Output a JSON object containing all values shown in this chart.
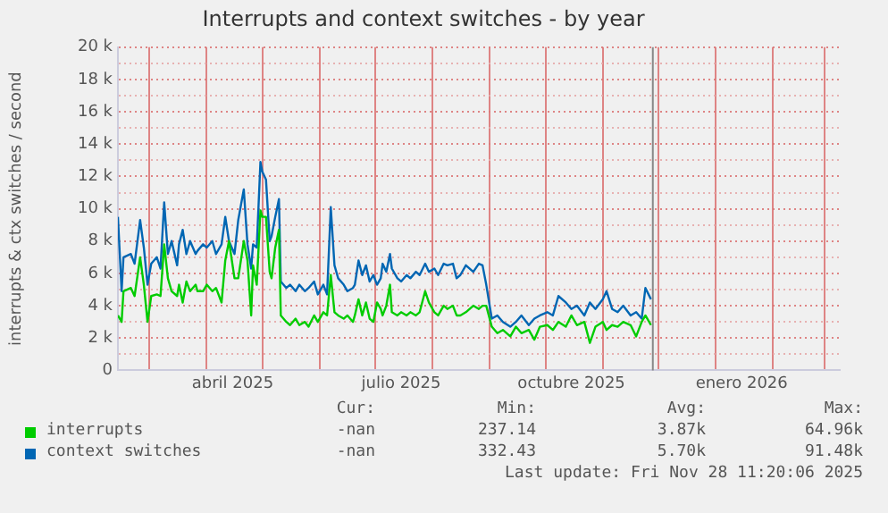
{
  "chart_data": {
    "type": "line",
    "title": "Interrupts and context switches - by year",
    "ylabel": "interrupts & ctx switches / second",
    "x": [
      "2025-02-12",
      "2025-02-14",
      "2025-02-15",
      "2025-02-19",
      "2025-02-21",
      "2025-02-24",
      "2025-02-26",
      "2025-02-28",
      "2025-03-02",
      "2025-03-05",
      "2025-03-07",
      "2025-03-09",
      "2025-03-11",
      "2025-03-13",
      "2025-03-16",
      "2025-03-17",
      "2025-03-19",
      "2025-03-21",
      "2025-03-23",
      "2025-03-26",
      "2025-03-27",
      "2025-03-30",
      "2025-04-01",
      "2025-04-04",
      "2025-04-06",
      "2025-04-09",
      "2025-04-11",
      "2025-04-13",
      "2025-04-16",
      "2025-04-18",
      "2025-04-21",
      "2025-04-23",
      "2025-04-25",
      "2025-04-26",
      "2025-04-28",
      "2025-04-30",
      "2025-05-01",
      "2025-05-03",
      "2025-05-05",
      "2025-05-06",
      "2025-05-08",
      "2025-05-10",
      "2025-05-11",
      "2025-05-14",
      "2025-05-16",
      "2025-05-19",
      "2025-05-21",
      "2025-05-24",
      "2025-05-26",
      "2025-05-29",
      "2025-05-31",
      "2025-06-03",
      "2025-06-05",
      "2025-06-07",
      "2025-06-09",
      "2025-06-11",
      "2025-06-14",
      "2025-06-16",
      "2025-06-19",
      "2025-06-20",
      "2025-06-22",
      "2025-06-24",
      "2025-06-26",
      "2025-06-28",
      "2025-06-30",
      "2025-07-02",
      "2025-07-04",
      "2025-07-05",
      "2025-07-07",
      "2025-07-09",
      "2025-07-10",
      "2025-07-13",
      "2025-07-15",
      "2025-07-18",
      "2025-07-20",
      "2025-07-23",
      "2025-07-25",
      "2025-07-28",
      "2025-07-30",
      "2025-08-02",
      "2025-08-04",
      "2025-08-07",
      "2025-08-09",
      "2025-08-12",
      "2025-08-14",
      "2025-08-16",
      "2025-08-19",
      "2025-08-23",
      "2025-08-26",
      "2025-08-28",
      "2025-08-30",
      "2025-09-02",
      "2025-09-05",
      "2025-09-08",
      "2025-09-12",
      "2025-09-15",
      "2025-09-18",
      "2025-09-22",
      "2025-09-25",
      "2025-09-28",
      "2025-10-02",
      "2025-10-05",
      "2025-10-08",
      "2025-10-12",
      "2025-10-15",
      "2025-10-18",
      "2025-10-22",
      "2025-10-25",
      "2025-10-28",
      "2025-11-01",
      "2025-11-03",
      "2025-11-06",
      "2025-11-09",
      "2025-11-12",
      "2025-11-16",
      "2025-11-19",
      "2025-11-22",
      "2025-11-24",
      "2025-11-27"
    ],
    "series": [
      {
        "name": "interrupts",
        "color": "#00cc00",
        "values": [
          3400,
          3000,
          4900,
          5100,
          4600,
          7000,
          5300,
          3000,
          4600,
          4700,
          4600,
          7800,
          5700,
          4900,
          4600,
          5300,
          4200,
          5500,
          4900,
          5300,
          4900,
          4900,
          5300,
          4900,
          5100,
          4200,
          6800,
          8000,
          5700,
          5700,
          8000,
          6800,
          3400,
          6500,
          5300,
          9900,
          9500,
          9500,
          6100,
          5700,
          7600,
          8700,
          3400,
          3000,
          2800,
          3200,
          2800,
          3000,
          2700,
          3400,
          3000,
          3600,
          3400,
          5900,
          3600,
          3400,
          3200,
          3400,
          3000,
          3400,
          4400,
          3400,
          4200,
          3200,
          3000,
          4200,
          3800,
          3400,
          4000,
          5300,
          3600,
          3400,
          3600,
          3400,
          3600,
          3400,
          3600,
          4900,
          4200,
          3600,
          3400,
          4000,
          3800,
          4000,
          3400,
          3400,
          3600,
          4000,
          3800,
          4000,
          4000,
          2700,
          2300,
          2500,
          2100,
          2700,
          2300,
          2500,
          1900,
          2700,
          2800,
          2500,
          3000,
          2700,
          3400,
          2800,
          3000,
          1700,
          2700,
          3000,
          2500,
          2800,
          2700,
          3000,
          2800,
          2100,
          3000,
          3400,
          2800
        ]
      },
      {
        "name": "context switches",
        "color": "#0066b3",
        "values": [
          9500,
          4900,
          7000,
          7200,
          6600,
          9300,
          7600,
          5300,
          6600,
          7000,
          6300,
          10400,
          7200,
          8000,
          6500,
          7800,
          8700,
          7200,
          8000,
          7200,
          7400,
          7800,
          7600,
          8000,
          7200,
          7800,
          9500,
          8000,
          7200,
          9300,
          11200,
          7800,
          6300,
          7800,
          7600,
          12900,
          12300,
          11800,
          8000,
          8300,
          9500,
          10600,
          5500,
          5100,
          5300,
          4900,
          5300,
          4900,
          5100,
          5500,
          4700,
          5300,
          4700,
          10100,
          6500,
          5700,
          5300,
          4900,
          5100,
          5300,
          6800,
          5900,
          6500,
          5500,
          5900,
          5300,
          5700,
          6600,
          6100,
          7200,
          6300,
          5700,
          5500,
          5900,
          5700,
          6100,
          5900,
          6600,
          6100,
          6300,
          5900,
          6600,
          6500,
          6600,
          5700,
          5900,
          6500,
          6100,
          6600,
          6500,
          5300,
          3200,
          3400,
          3000,
          2700,
          3000,
          3400,
          2800,
          3200,
          3400,
          3600,
          3400,
          4600,
          4200,
          3800,
          4000,
          3400,
          4200,
          3800,
          4400,
          4900,
          3800,
          3600,
          4000,
          3400,
          3600,
          3200,
          5100,
          4400
        ]
      }
    ],
    "xlim": [
      "2025-02-12",
      "2026-03-09"
    ],
    "xticks": [
      {
        "value": "2025-03-01",
        "label": null
      },
      {
        "value": "2025-04-01",
        "label": null
      },
      {
        "value": "2025-04-15",
        "label": "abril 2025"
      },
      {
        "value": "2025-05-01",
        "label": null
      },
      {
        "value": "2025-06-01",
        "label": null
      },
      {
        "value": "2025-07-01",
        "label": null
      },
      {
        "value": "2025-07-15",
        "label": "julio 2025"
      },
      {
        "value": "2025-08-01",
        "label": null
      },
      {
        "value": "2025-09-01",
        "label": null
      },
      {
        "value": "2025-10-01",
        "label": null
      },
      {
        "value": "2025-10-15",
        "label": "octubre 2025"
      },
      {
        "value": "2025-11-01",
        "label": null
      },
      {
        "value": "2025-12-01",
        "label": null
      },
      {
        "value": "2026-01-01",
        "label": null
      },
      {
        "value": "2026-01-15",
        "label": "enero 2026"
      },
      {
        "value": "2026-02-01",
        "label": null
      },
      {
        "value": "2026-03-01",
        "label": null
      }
    ],
    "ylim": [
      0,
      20000
    ],
    "yticks": [
      {
        "value": 0,
        "label": "0"
      },
      {
        "value": 1000,
        "label": null
      },
      {
        "value": 2000,
        "label": "2 k"
      },
      {
        "value": 3000,
        "label": null
      },
      {
        "value": 4000,
        "label": "4 k"
      },
      {
        "value": 5000,
        "label": null
      },
      {
        "value": 6000,
        "label": "6 k"
      },
      {
        "value": 7000,
        "label": null
      },
      {
        "value": 8000,
        "label": "8 k"
      },
      {
        "value": 9000,
        "label": null
      },
      {
        "value": 10000,
        "label": "10 k"
      },
      {
        "value": 11000,
        "label": null
      },
      {
        "value": 12000,
        "label": "12 k"
      },
      {
        "value": 13000,
        "label": null
      },
      {
        "value": 14000,
        "label": "14 k"
      },
      {
        "value": 15000,
        "label": null
      },
      {
        "value": 16000,
        "label": "16 k"
      },
      {
        "value": 17000,
        "label": null
      },
      {
        "value": 18000,
        "label": "18 k"
      },
      {
        "value": 19000,
        "label": null
      },
      {
        "value": 20000,
        "label": "20 k"
      }
    ],
    "ref_lines": [
      {
        "axis": "x",
        "value": "2025-11-28",
        "color": "#888888"
      }
    ],
    "grid": true,
    "legend": "bottom",
    "marker": "none",
    "line_style": "solid",
    "annotations": [
      "Cur:",
      "Min:",
      "Avg:",
      "Max:",
      "-nan",
      "237.14",
      "3.87k",
      "64.96k",
      "-nan",
      "332.43",
      "5.70k",
      "91.48k",
      "Last update: Fri Nov 28 11:20:06 2025"
    ]
  }
}
